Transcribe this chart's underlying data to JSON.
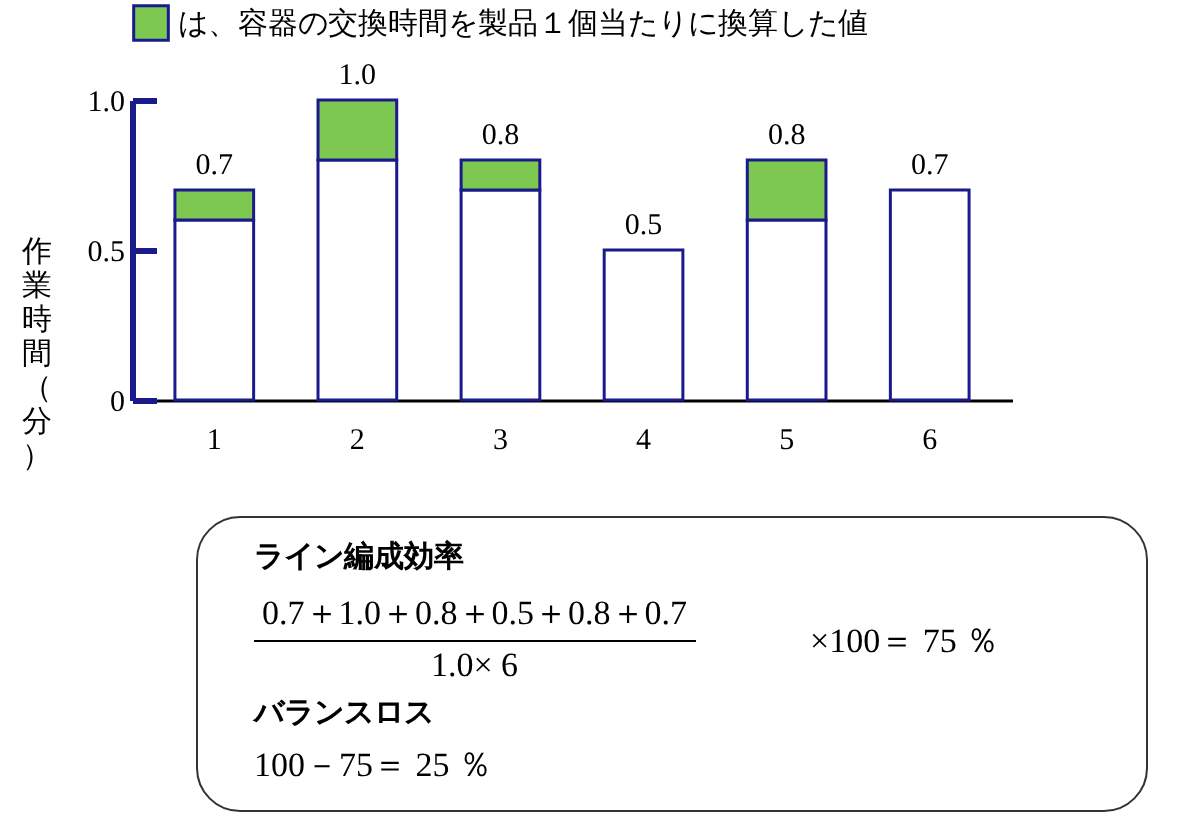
{
  "chart_data": {
    "type": "bar",
    "stacked": true,
    "ylabel": "作業時間（分）",
    "categories": [
      "1",
      "2",
      "3",
      "4",
      "5",
      "6"
    ],
    "series": [
      {
        "color": "#ffffff",
        "values": [
          0.6,
          0.8,
          0.7,
          0.5,
          0.6,
          0.7
        ]
      },
      {
        "name": "は、容器の交換時間を製品１個当たりに換算した値",
        "color": "#7cc850",
        "values": [
          0.1,
          0.2,
          0.1,
          0,
          0.2,
          0
        ]
      }
    ],
    "totals": [
      "0.7",
      "1.0",
      "0.8",
      "0.5",
      "0.8",
      "0.7"
    ],
    "ylim": [
      0,
      1.0
    ],
    "yticks": [
      0,
      0.5,
      {
        "value": 1,
        "label": "1.0"
      }
    ],
    "legend": "top",
    "grid": false,
    "annotations": [
      "ライン編成効率",
      "0.7＋1.0＋0.8＋0.5＋0.8＋0.7",
      "1.0× 6",
      "×100＝ 75 ％",
      "バランスロス",
      "100－75＝ 25 ％"
    ]
  }
}
